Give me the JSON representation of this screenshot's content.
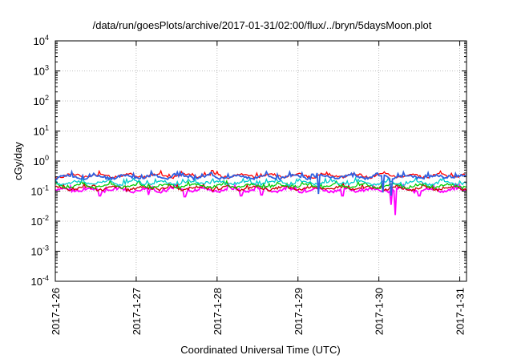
{
  "chart_data": {
    "type": "line",
    "title": "/data/run/goesPlots/archive/2017-01-31/02:00/flux/../bryn/5daysMoon.plot",
    "xlabel": "Coordinated Universal Time (UTC)",
    "ylabel": "cGy/day",
    "yscale": "log",
    "ylim": [
      0.0001,
      10000
    ],
    "xlim": [
      "2017-01-26",
      "2017-01-31 02:00"
    ],
    "x_ticks": [
      "2017-1-26",
      "2017-1-27",
      "2017-1-28",
      "2017-1-29",
      "2017-1-30",
      "2017-1-31"
    ],
    "y_ticks": [
      {
        "value": 0.0001,
        "base": "10",
        "exp": "-4"
      },
      {
        "value": 0.001,
        "base": "10",
        "exp": "-3"
      },
      {
        "value": 0.01,
        "base": "10",
        "exp": "-2"
      },
      {
        "value": 0.1,
        "base": "10",
        "exp": "-1"
      },
      {
        "value": 1,
        "base": "10",
        "exp": "0"
      },
      {
        "value": 10,
        "base": "10",
        "exp": "1"
      },
      {
        "value": 100,
        "base": "10",
        "exp": "2"
      },
      {
        "value": 1000,
        "base": "10",
        "exp": "3"
      },
      {
        "value": 10000,
        "base": "10",
        "exp": "4"
      }
    ],
    "grid": true,
    "legend": "none",
    "series": [
      {
        "color": "#ff00ff",
        "level": 0.11,
        "dips": [
          {
            "day": 0.55,
            "value": 0.07
          },
          {
            "day": 1.6,
            "value": 0.065
          },
          {
            "day": 2.55,
            "value": 0.075
          },
          {
            "day": 3.55,
            "value": 0.07
          },
          {
            "day": 4.15,
            "value": 0.035
          },
          {
            "day": 4.2,
            "value": 0.016
          },
          {
            "day": 4.5,
            "value": 0.07
          },
          {
            "day": 1.15,
            "value": 0.075
          },
          {
            "day": 2.3,
            "value": 0.07
          }
        ]
      },
      {
        "color": "#cc0000",
        "level": 0.125,
        "dips": []
      },
      {
        "color": "#00cc00",
        "level": 0.15,
        "dips": []
      },
      {
        "color": "#00cccc",
        "level": 0.19,
        "dips": []
      },
      {
        "color": "#ff0000",
        "level": 0.33,
        "dips": []
      },
      {
        "color": "#3060e0",
        "level": 0.3,
        "dips": [
          {
            "day": 4.05,
            "value": 0.09
          },
          {
            "day": 4.15,
            "value": 0.07
          },
          {
            "day": 3.25,
            "value": 0.08
          }
        ]
      }
    ]
  }
}
